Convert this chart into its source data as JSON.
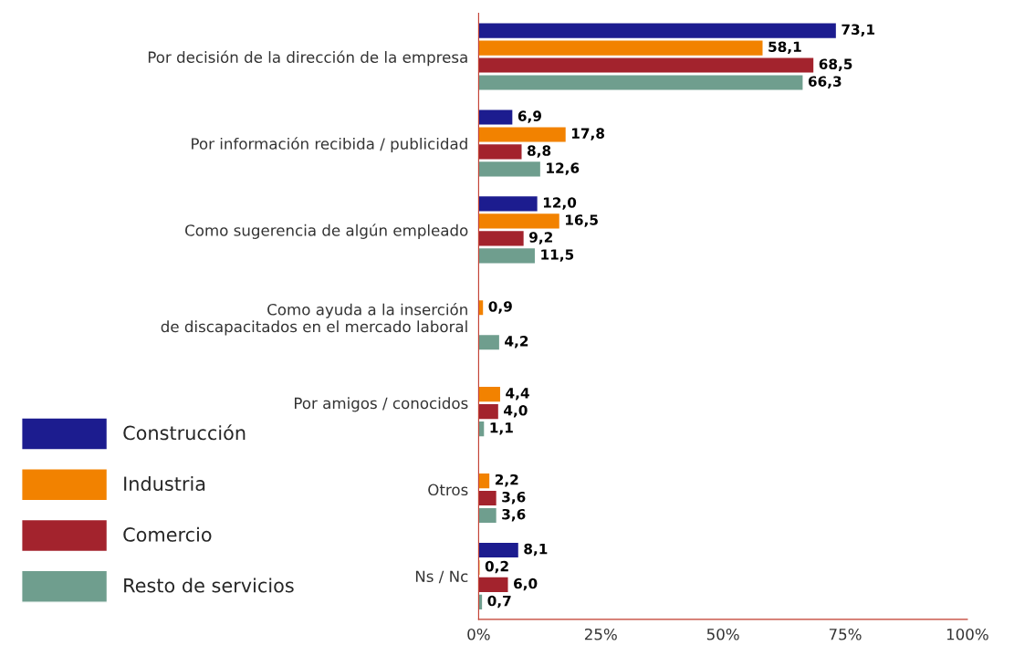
{
  "chart_data": {
    "type": "bar",
    "orientation": "horizontal",
    "categories": [
      "Por decisión de la dirección de la empresa",
      "Por información recibida / publicidad",
      "Como sugerencia de algún empleado",
      "Como ayuda a la inserción\nde discapacitados en el mercado laboral",
      "Por amigos / conocidos",
      "Otros",
      "Ns / Nc"
    ],
    "series": [
      {
        "name": "Construcción",
        "color": "#1c1c8f",
        "values": [
          73.1,
          6.9,
          12.0,
          null,
          null,
          null,
          8.1
        ],
        "value_labels": [
          "73,1",
          "6,9",
          "12,0",
          null,
          null,
          null,
          "8,1"
        ]
      },
      {
        "name": "Industria",
        "color": "#f28200",
        "values": [
          58.1,
          17.8,
          16.5,
          0.9,
          4.4,
          2.2,
          0.2
        ],
        "value_labels": [
          "58,1",
          "17,8",
          "16,5",
          "0,9",
          "4,4",
          "2,2",
          "0,2"
        ]
      },
      {
        "name": "Comercio",
        "color": "#a3232d",
        "values": [
          68.5,
          8.8,
          9.2,
          null,
          4.0,
          3.6,
          6.0
        ],
        "value_labels": [
          "68,5",
          "8,8",
          "9,2",
          null,
          "4,0",
          "3,6",
          "6,0"
        ]
      },
      {
        "name": "Resto de servicios",
        "color": "#6f9e8e",
        "values": [
          66.3,
          12.6,
          11.5,
          4.2,
          1.1,
          3.6,
          0.7
        ],
        "value_labels": [
          "66,3",
          "12,6",
          "11,5",
          "4,2",
          "1,1",
          "3,6",
          "0,7"
        ]
      }
    ],
    "xlim": [
      0,
      100
    ],
    "xticks": [
      {
        "value": 0,
        "label": "0%"
      },
      {
        "value": 25,
        "label": "25%"
      },
      {
        "value": 50,
        "label": "50%"
      },
      {
        "value": 75,
        "label": "75%"
      },
      {
        "value": 100,
        "label": "100%"
      }
    ],
    "legend": "bottom left"
  }
}
